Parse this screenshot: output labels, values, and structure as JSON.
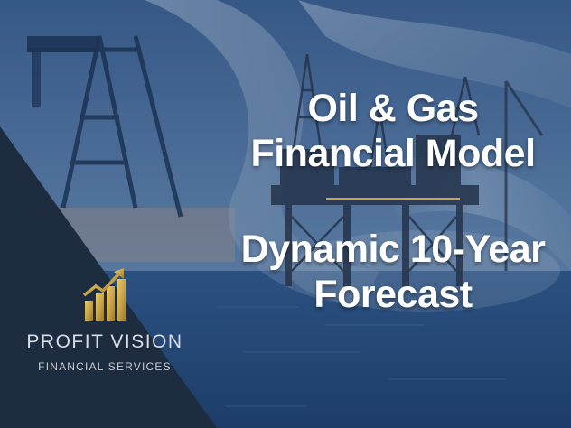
{
  "title": {
    "line1": "Oil & Gas",
    "line2": "Financial Model",
    "line3": "Dynamic 10-Year",
    "line4": "Forecast"
  },
  "logo": {
    "icon": "bar-chart-arrow-icon",
    "brand": "PROFIT VISION",
    "tagline": "FINANCIAL SERVICES"
  },
  "colors": {
    "accent_gold": "#c9a64a",
    "panel_navy": "#1e2c3f",
    "sea_blue": "#2a4a72",
    "title_white": "#ffffff"
  }
}
